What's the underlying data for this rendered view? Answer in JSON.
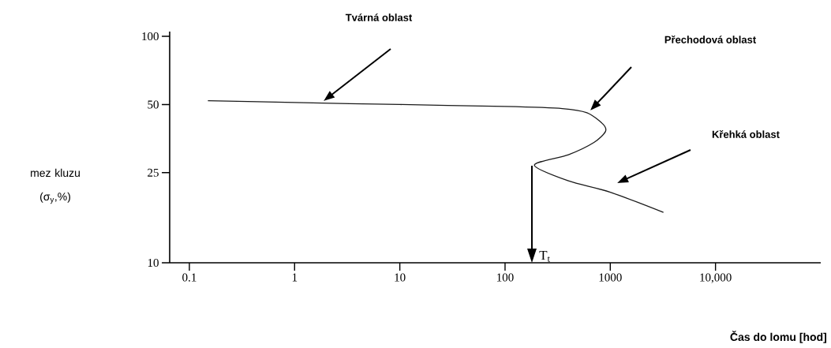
{
  "chart_data": {
    "type": "line",
    "xlabel": "Čas do lomu [hod]",
    "ylabel": "mez kluzu (σ$_{y}$,%)",
    "series": [
      {
        "color": "#1a1a1a",
        "x": [
          0.15,
          1,
          10,
          100,
          350,
          600,
          850,
          900,
          700,
          400,
          190,
          400,
          1000,
          3200
        ],
        "values": [
          52,
          51,
          50,
          49,
          48,
          46,
          41,
          38,
          34,
          30,
          27,
          23,
          20.5,
          16.7
        ]
      }
    ],
    "log": "xy",
    "xlim": [
      0.065,
      100000
    ],
    "ylim": [
      10,
      105
    ],
    "xticks": [
      0.1,
      1,
      10,
      100,
      1000,
      {
        "value": 10000,
        "label": "10,000"
      }
    ],
    "yticks": [
      10,
      25,
      50,
      100
    ],
    "grid": false,
    "marker": "none",
    "line_style": "solid",
    "annotations": [
      "Tvárná oblast",
      "Přechodová oblast",
      "Křehká oblast"
    ],
    "ref_lines": [
      {
        "axis": "x",
        "value": 180,
        "label": "T$_{t}$"
      }
    ]
  }
}
